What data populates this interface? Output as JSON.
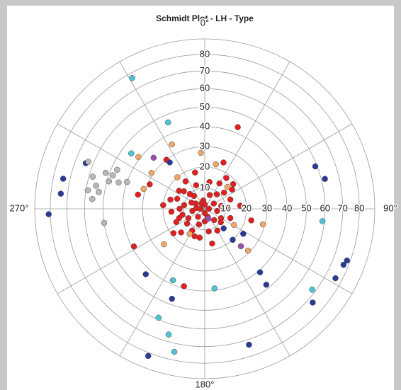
{
  "chart_data": {
    "type": "polar-scatter",
    "title": "Schmidt Plot - LH - Type",
    "projection": "equal-area",
    "rlim": [
      0,
      90
    ],
    "rticks": [
      10,
      20,
      30,
      40,
      50,
      60,
      70,
      80
    ],
    "thetaticks": [
      {
        "value": 0,
        "label": "0°"
      },
      {
        "value": 90,
        "label": "90°"
      },
      {
        "value": 180,
        "label": "180°"
      },
      {
        "value": 270,
        "label": "270°"
      }
    ],
    "thetagrid": [
      0,
      30,
      60,
      90,
      120,
      150,
      180,
      210,
      240,
      270,
      300,
      330
    ],
    "series": [
      {
        "color": "#e02020",
        "theta": [
          300,
          320,
          280,
          260,
          240,
          220,
          200,
          180,
          160,
          140,
          120,
          100,
          80,
          60,
          40,
          20,
          0,
          340,
          310,
          290,
          270,
          250,
          230,
          210,
          190,
          170,
          150,
          130,
          110,
          90,
          70,
          50,
          30,
          10,
          350,
          330,
          315,
          295,
          275,
          255,
          305,
          285,
          325,
          345,
          265,
          245,
          35,
          55,
          200,
          225,
          0,
          90,
          180,
          270,
          22,
          242,
          195,
          282,
          104,
          85,
          49,
          22,
          294,
          322,
          168,
          232,
          275
        ],
        "values": [
          5,
          8,
          10,
          6,
          9,
          5,
          8,
          6,
          4,
          7,
          9,
          6,
          8,
          5,
          9,
          7,
          10,
          12,
          13,
          14,
          12,
          13,
          11,
          12,
          14,
          11,
          12,
          10,
          13,
          11,
          13,
          12,
          14,
          13,
          4,
          3,
          10,
          7,
          4,
          11,
          15,
          17,
          16,
          18,
          16,
          15,
          18,
          16,
          14,
          16,
          2,
          2,
          2,
          2,
          43,
          39,
          39,
          33,
          23,
          17,
          18,
          24,
          29,
          30,
          17,
          19,
          20
        ]
      },
      {
        "color": "#f0a868",
        "theta": [
          333,
          356,
          14,
          308,
          288,
          304,
          134,
          229,
          105,
          119,
          46,
          319,
          211
        ],
        "values": [
          35,
          27,
          22,
          41,
          31,
          31,
          29,
          26,
          29,
          16,
          15,
          20,
          14
        ]
      },
      {
        "color": "#2b3a9a",
        "theta": [
          268,
          276,
          282,
          291,
          222,
          200,
          201,
          162,
          141,
          139,
          69,
          76,
          118,
          112,
          110,
          131,
          136,
          138,
          123,
          323
        ],
        "values": [
          81,
          74,
          74,
          64,
          43,
          47,
          82,
          73,
          48,
          41,
          59,
          62,
          76,
          77,
          78,
          73,
          13,
          20,
          22,
          28
        ]
      },
      {
        "color": "#4fc3d6",
        "theta": [
          331,
          337,
          173,
          204,
          203,
          196,
          192,
          127,
          96,
          307
        ],
        "values": [
          77,
          46,
          39,
          38,
          59,
          66,
          75,
          68,
          59,
          45
        ]
      },
      {
        "color": "#b8b8b8",
        "theta": [
          292,
          286,
          282,
          279,
          290,
          286,
          290,
          294,
          287,
          279,
          262,
          275,
          289
        ],
        "values": [
          63,
          58,
          55,
          53,
          52,
          49,
          48,
          47,
          44,
          59,
          50,
          56,
          40
        ]
      },
      {
        "color": "#9b4fb3",
        "theta": [
          315,
          136,
          160
        ],
        "values": [
          35,
          25,
          5
        ]
      }
    ]
  }
}
